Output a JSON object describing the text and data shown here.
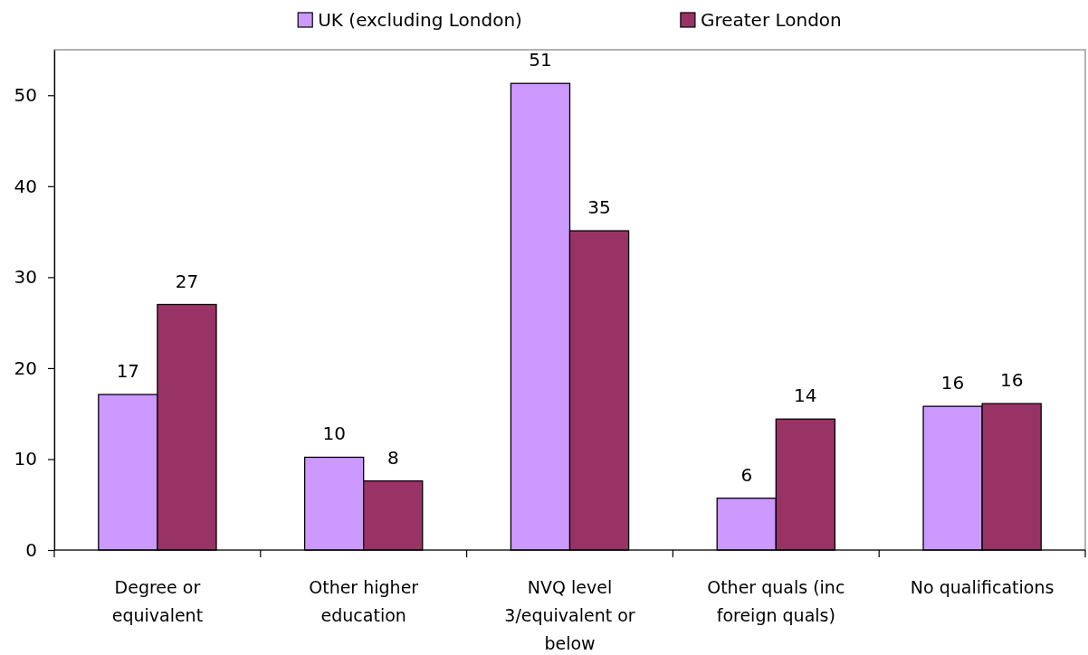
{
  "chart_data": {
    "type": "bar",
    "categories": [
      "Degree or equivalent",
      "Other higher education",
      "NVQ level 3/equivalent or below",
      "Other quals (inc foreign quals)",
      "No qualifications"
    ],
    "series": [
      {
        "name": "UK (excluding London)",
        "color": "#cc99ff",
        "values": [
          17.1,
          10.2,
          51.3,
          5.7,
          15.8
        ],
        "value_labels": [
          "17",
          "10",
          "51",
          "6",
          "16"
        ]
      },
      {
        "name": "Greater London",
        "color": "#993366",
        "values": [
          27.0,
          7.6,
          35.1,
          14.4,
          16.1
        ],
        "value_labels": [
          "27",
          "8",
          "35",
          "14",
          "16"
        ]
      }
    ],
    "ylim": [
      0,
      55
    ],
    "yticks": [
      0,
      10,
      20,
      30,
      40,
      50
    ],
    "legend": "top"
  }
}
